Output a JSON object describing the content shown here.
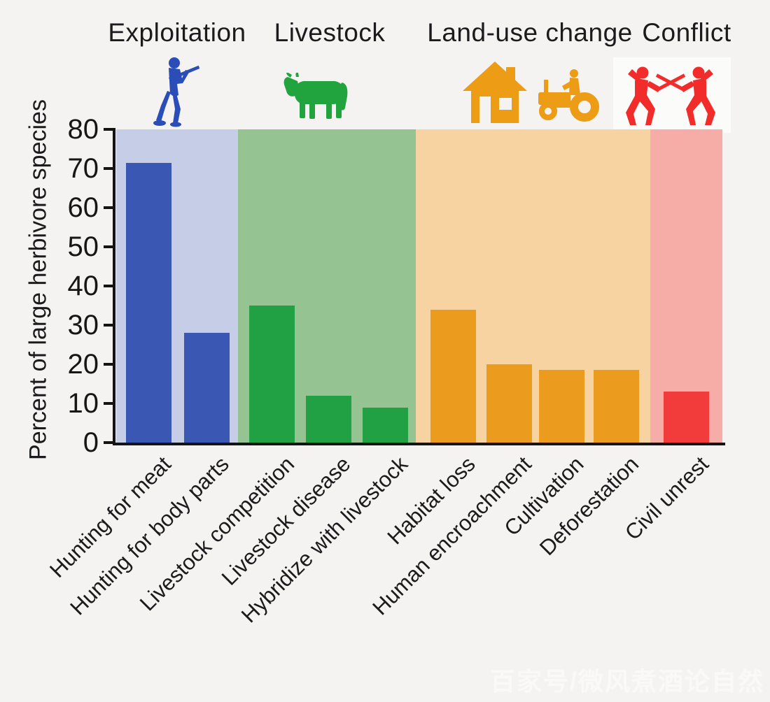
{
  "page": {
    "background": "#f4f3f1",
    "watermark": "百家号/微风煮酒论自然"
  },
  "chart_data": {
    "type": "bar",
    "title": "",
    "ylabel": "Percent of large herbivore species",
    "xlabel": "",
    "ylim": [
      0,
      80
    ],
    "yticks": [
      0,
      10,
      20,
      30,
      40,
      50,
      60,
      70,
      80
    ],
    "grid": false,
    "legend": "none",
    "groups": [
      {
        "name": "Exploitation",
        "icon": "hunter-icon",
        "icon_color": "#2b4db8",
        "bar_color": "#3a57b4",
        "panel_color": "#c5cde7",
        "bars": [
          {
            "label": "Hunting for meat",
            "value": 71.5
          },
          {
            "label": "Hunting for body parts",
            "value": 28
          }
        ]
      },
      {
        "name": "Livestock",
        "icon": "cow-icon",
        "icon_color": "#21a43e",
        "bar_color": "#21a143",
        "panel_color": "#95c391",
        "bars": [
          {
            "label": "Livestock competition",
            "value": 35
          },
          {
            "label": "Livestock disease",
            "value": 12
          },
          {
            "label": "Hybridize with livestock",
            "value": 9
          }
        ]
      },
      {
        "name": "Land-use change",
        "icon": "house-and-tractor-icons",
        "icon_color": "#ec9c15",
        "bar_color": "#eb9b1e",
        "panel_color": "#f8d3a2",
        "bars": [
          {
            "label": "Habitat loss",
            "value": 34
          },
          {
            "label": "Human encroachment",
            "value": 20
          },
          {
            "label": "Cultivation",
            "value": 18.5
          },
          {
            "label": "Deforestation",
            "value": 18.5
          }
        ]
      },
      {
        "name": "Conflict",
        "icon": "fencers-icon",
        "icon_color": "#f22b2b",
        "bar_color": "#f23c3c",
        "panel_color": "#f6aca7",
        "bars": [
          {
            "label": "Civil unrest",
            "value": 13
          }
        ]
      }
    ]
  }
}
